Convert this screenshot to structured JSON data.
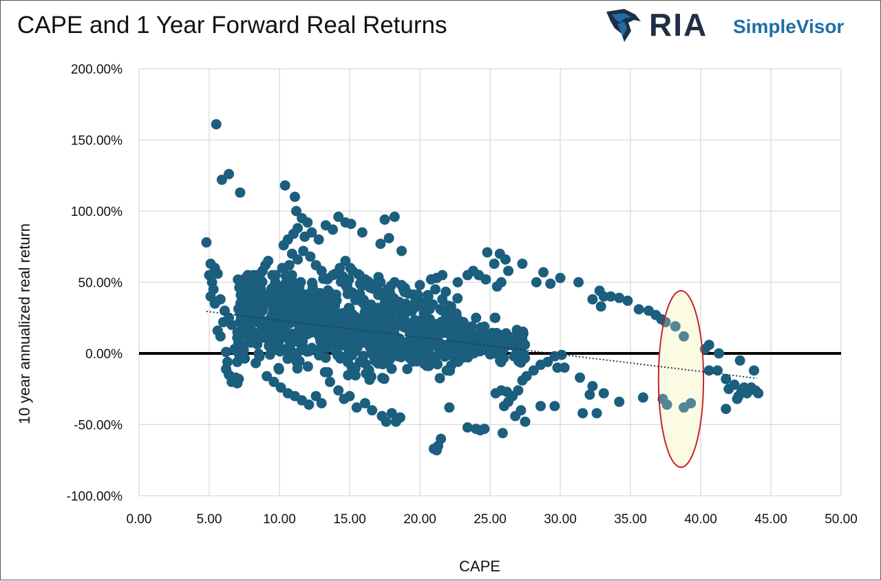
{
  "header": {
    "title": "CAPE and 1 Year Forward Real Returns",
    "logo_main": "RIA",
    "logo_sub": "SimpleVisor"
  },
  "colors": {
    "point": "#1b5e7e",
    "grid": "#d9d9d9",
    "zero_line": "#000000",
    "highlight_fill": "#fbfbe4",
    "highlight_stroke": "#c8212b",
    "logo_dark": "#1e2f45",
    "logo_blue": "#1f6ea6"
  },
  "chart_data": {
    "type": "scatter",
    "title": "CAPE and 1 Year Forward Real Returns",
    "xlabel": "CAPE",
    "ylabel": "10 year annualized real return",
    "xlim": [
      0,
      50
    ],
    "ylim": [
      -100,
      200
    ],
    "xticks": [
      0,
      5,
      10,
      15,
      20,
      25,
      30,
      35,
      40,
      45,
      50
    ],
    "xtick_labels": [
      "0.00",
      "5.00",
      "10.00",
      "15.00",
      "20.00",
      "25.00",
      "30.00",
      "35.00",
      "40.00",
      "45.00",
      "50.00"
    ],
    "yticks": [
      200,
      150,
      100,
      50,
      0,
      -50,
      -100
    ],
    "ytick_labels": [
      "200.00%",
      "150.00%",
      "100.00%",
      "50.00%",
      "0.00%",
      "-50.00%",
      "-100.00%"
    ],
    "grid": true,
    "zero_line": true,
    "trendline": {
      "type": "linear",
      "style": "dotted",
      "x": [
        4.8,
        44.0
      ],
      "y": [
        29.5,
        -17.5
      ]
    },
    "highlight": {
      "shape": "ellipse",
      "center": [
        38.6,
        -18
      ],
      "radius_x": 1.6,
      "radius_y": 62
    },
    "series": [
      {
        "name": "CAPE vs forward real return",
        "points": [
          [
            5.5,
            161
          ],
          [
            5.9,
            122
          ],
          [
            6.4,
            126
          ],
          [
            7.2,
            113
          ],
          [
            10.4,
            118
          ],
          [
            11.1,
            110
          ],
          [
            11.2,
            100
          ],
          [
            11.6,
            95
          ],
          [
            12.0,
            92
          ],
          [
            11.3,
            88
          ],
          [
            11.0,
            84
          ],
          [
            10.6,
            80
          ],
          [
            10.3,
            76
          ],
          [
            11.8,
            82
          ],
          [
            12.3,
            85
          ],
          [
            12.8,
            80
          ],
          [
            13.3,
            90
          ],
          [
            13.8,
            87
          ],
          [
            14.2,
            96
          ],
          [
            14.7,
            92
          ],
          [
            15.1,
            91
          ],
          [
            15.9,
            85
          ],
          [
            17.2,
            77
          ],
          [
            17.5,
            94
          ],
          [
            17.8,
            81
          ],
          [
            18.2,
            96
          ],
          [
            18.7,
            72
          ],
          [
            4.8,
            78
          ],
          [
            5.1,
            63
          ],
          [
            5.4,
            60
          ],
          [
            5.0,
            55
          ],
          [
            5.2,
            50
          ],
          [
            5.6,
            56
          ],
          [
            5.3,
            45
          ],
          [
            5.1,
            40
          ],
          [
            5.4,
            35
          ],
          [
            5.8,
            38
          ],
          [
            6.1,
            30
          ],
          [
            6.4,
            25
          ],
          [
            6.6,
            20
          ],
          [
            5.6,
            16
          ],
          [
            5.8,
            12
          ],
          [
            6.0,
            22
          ],
          [
            6.2,
            1
          ],
          [
            6.3,
            -6
          ],
          [
            6.2,
            -11
          ],
          [
            6.4,
            -15
          ],
          [
            6.6,
            -20
          ],
          [
            6.9,
            -17
          ],
          [
            7.0,
            -21
          ],
          [
            7.1,
            -18
          ],
          [
            7.0,
            -6
          ],
          [
            6.8,
            3
          ],
          [
            7.3,
            7
          ],
          [
            7.4,
            -2
          ],
          [
            7.0,
            11
          ],
          [
            7.2,
            15
          ],
          [
            7.6,
            25
          ],
          [
            7.5,
            35
          ],
          [
            7.7,
            45
          ],
          [
            8.0,
            52
          ],
          [
            8.3,
            48
          ],
          [
            8.6,
            55
          ],
          [
            8.8,
            58
          ],
          [
            9.0,
            62
          ],
          [
            9.2,
            65
          ],
          [
            9.5,
            55
          ],
          [
            9.7,
            50
          ],
          [
            9.9,
            45
          ],
          [
            10.2,
            60
          ],
          [
            10.5,
            55
          ],
          [
            10.7,
            62
          ],
          [
            10.9,
            70
          ],
          [
            11.3,
            66
          ],
          [
            11.7,
            72
          ],
          [
            12.2,
            68
          ],
          [
            12.6,
            62
          ],
          [
            13.0,
            58
          ],
          [
            13.4,
            52
          ],
          [
            13.8,
            55
          ],
          [
            14.3,
            60
          ],
          [
            14.7,
            65
          ],
          [
            15.2,
            58
          ],
          [
            15.7,
            55
          ],
          [
            16.1,
            52
          ],
          [
            16.6,
            48
          ],
          [
            17.2,
            50
          ],
          [
            17.7,
            45
          ],
          [
            18.2,
            50
          ],
          [
            18.7,
            48
          ],
          [
            19.2,
            42
          ],
          [
            19.7,
            38
          ],
          [
            20.1,
            35
          ],
          [
            20.6,
            40
          ],
          [
            21.1,
            45
          ],
          [
            21.6,
            38
          ],
          [
            22.2,
            32
          ],
          [
            22.6,
            28
          ],
          [
            23.1,
            22
          ],
          [
            23.4,
            18
          ],
          [
            23.8,
            58
          ],
          [
            24.2,
            55
          ],
          [
            24.8,
            71
          ],
          [
            25.3,
            63
          ],
          [
            25.7,
            70
          ],
          [
            26.1,
            66
          ],
          [
            26.3,
            58
          ],
          [
            25.8,
            50
          ],
          [
            25.5,
            47
          ],
          [
            24.7,
            52
          ],
          [
            23.4,
            55
          ],
          [
            22.7,
            50
          ],
          [
            21.6,
            55
          ],
          [
            21.2,
            53
          ],
          [
            20.8,
            52
          ],
          [
            20.0,
            48
          ],
          [
            27.3,
            63
          ],
          [
            28.3,
            50
          ],
          [
            28.8,
            57
          ],
          [
            29.3,
            49
          ],
          [
            30.0,
            53
          ],
          [
            31.3,
            50
          ],
          [
            32.3,
            38
          ],
          [
            32.8,
            44
          ],
          [
            33.1,
            40
          ],
          [
            32.9,
            33
          ],
          [
            33.6,
            40
          ],
          [
            34.2,
            39
          ],
          [
            34.8,
            37
          ],
          [
            35.6,
            31
          ],
          [
            36.3,
            30
          ],
          [
            36.8,
            27
          ],
          [
            37.2,
            24
          ],
          [
            37.5,
            22
          ],
          [
            38.2,
            19
          ],
          [
            38.8,
            12
          ],
          [
            37.3,
            -32
          ],
          [
            37.6,
            -36
          ],
          [
            38.8,
            -38
          ],
          [
            39.3,
            -35
          ],
          [
            35.9,
            -31
          ],
          [
            34.2,
            -34
          ],
          [
            33.1,
            -28
          ],
          [
            32.6,
            -42
          ],
          [
            31.6,
            -42
          ],
          [
            32.1,
            -29
          ],
          [
            32.3,
            -23
          ],
          [
            31.4,
            -17
          ],
          [
            30.3,
            -10
          ],
          [
            29.8,
            -10
          ],
          [
            30.1,
            -1
          ],
          [
            29.6,
            -2
          ],
          [
            29.1,
            -6
          ],
          [
            28.6,
            -8
          ],
          [
            28.1,
            -12
          ],
          [
            27.6,
            -16
          ],
          [
            27.3,
            -19
          ],
          [
            27.0,
            -26
          ],
          [
            26.6,
            -30
          ],
          [
            26.3,
            -34
          ],
          [
            26.0,
            -37
          ],
          [
            25.8,
            -26
          ],
          [
            26.2,
            -27
          ],
          [
            25.4,
            -28
          ],
          [
            24.6,
            -53
          ],
          [
            24.3,
            -54
          ],
          [
            24.0,
            -53
          ],
          [
            23.4,
            -52
          ],
          [
            25.9,
            -56
          ],
          [
            27.5,
            -48
          ],
          [
            26.8,
            -44
          ],
          [
            27.2,
            -40
          ],
          [
            28.6,
            -37
          ],
          [
            29.6,
            -37
          ],
          [
            22.1,
            -38
          ],
          [
            21.5,
            -60
          ],
          [
            21.3,
            -65
          ],
          [
            21.0,
            -67
          ],
          [
            21.2,
            -68
          ],
          [
            18.3,
            -48
          ],
          [
            18.6,
            -45
          ],
          [
            18.0,
            -42
          ],
          [
            17.6,
            -48
          ],
          [
            17.3,
            -44
          ],
          [
            16.6,
            -40
          ],
          [
            16.1,
            -35
          ],
          [
            15.5,
            -38
          ],
          [
            15.0,
            -30
          ],
          [
            14.6,
            -32
          ],
          [
            14.2,
            -26
          ],
          [
            13.6,
            -20
          ],
          [
            13.0,
            -35
          ],
          [
            12.6,
            -30
          ],
          [
            12.1,
            -36
          ],
          [
            11.6,
            -33
          ],
          [
            11.1,
            -30
          ],
          [
            10.6,
            -28
          ],
          [
            10.1,
            -24
          ],
          [
            9.6,
            -20
          ],
          [
            9.1,
            -16
          ],
          [
            40.3,
            3
          ],
          [
            40.6,
            6
          ],
          [
            41.3,
            0
          ],
          [
            40.6,
            -12
          ],
          [
            41.2,
            -12
          ],
          [
            41.8,
            -18
          ],
          [
            42.0,
            -25
          ],
          [
            42.4,
            -22
          ],
          [
            42.7,
            -30
          ],
          [
            42.9,
            -27
          ],
          [
            43.1,
            -24
          ],
          [
            43.3,
            -28
          ],
          [
            43.6,
            -24
          ],
          [
            43.9,
            -26
          ],
          [
            44.1,
            -28
          ],
          [
            43.8,
            -12
          ],
          [
            42.8,
            -5
          ],
          [
            41.8,
            -39
          ],
          [
            42.6,
            -32
          ]
        ]
      }
    ],
    "dense_cluster": {
      "description_free": true,
      "regions": [
        {
          "x": [
            7.0,
            12.5
          ],
          "y": [
            -30,
            55
          ],
          "count": 330
        },
        {
          "x": [
            12.5,
            18.0
          ],
          "y": [
            -35,
            60
          ],
          "count": 280
        },
        {
          "x": [
            17.5,
            23.0
          ],
          "y": [
            -35,
            50
          ],
          "count": 230
        },
        {
          "x": [
            23.0,
            27.5
          ],
          "y": [
            -20,
            25
          ],
          "count": 90
        }
      ]
    }
  }
}
